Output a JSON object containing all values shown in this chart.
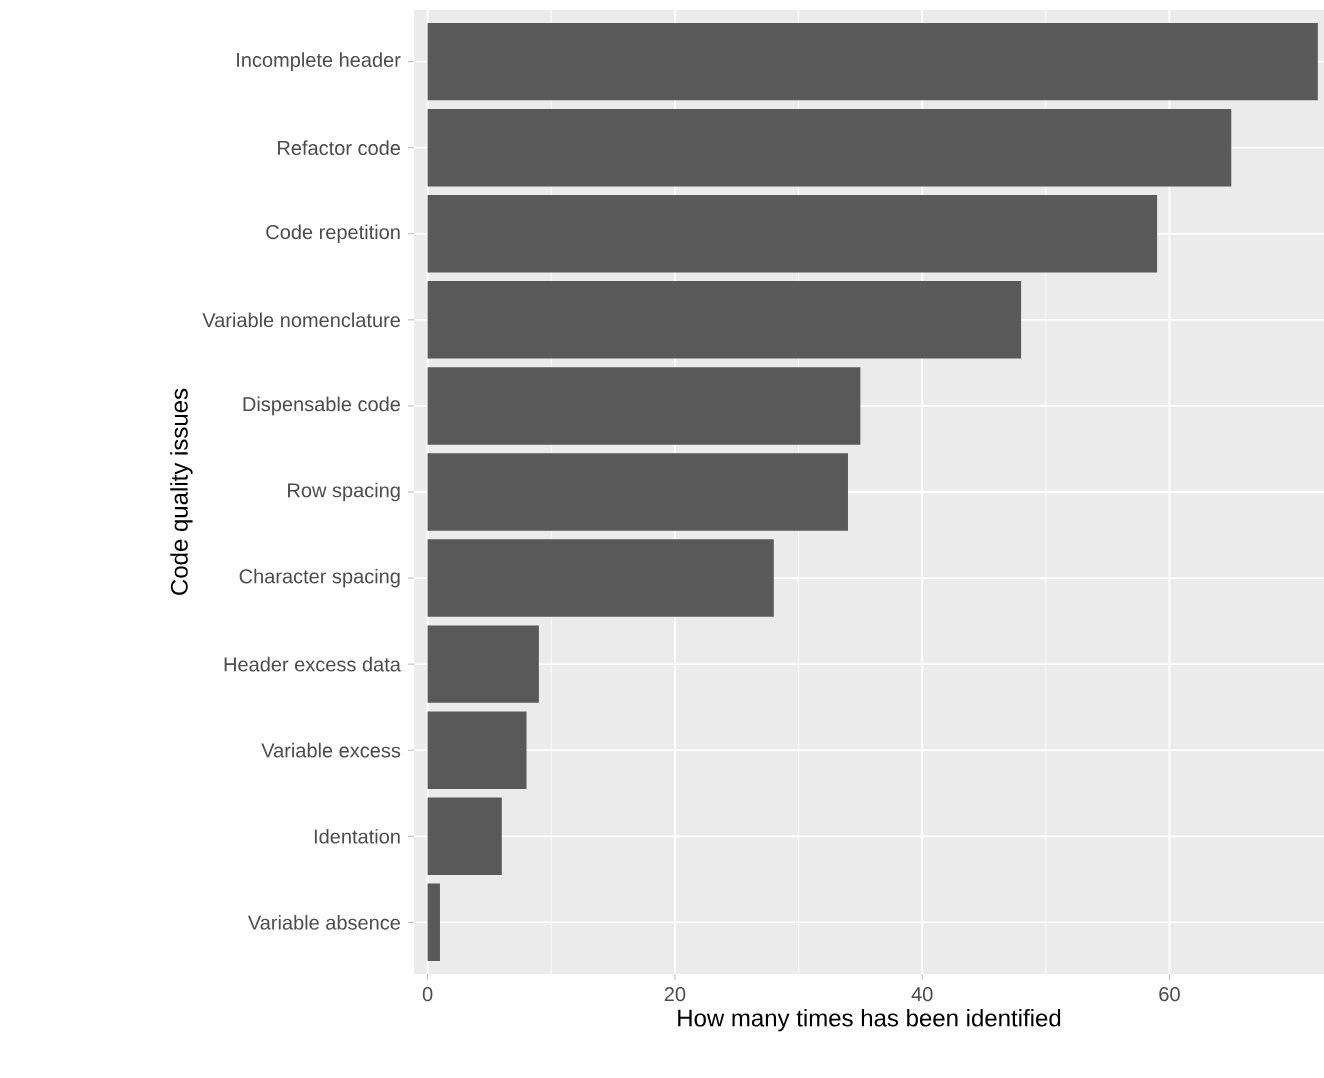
{
  "chart_data": {
    "type": "bar",
    "orientation": "horizontal",
    "xlabel": "How many times has been identified",
    "ylabel": "Code quality issues",
    "categories": [
      "Incomplete header",
      "Refactor code",
      "Code repetition",
      "Variable nomenclature",
      "Dispensable code",
      "Row spacing",
      "Character spacing",
      "Header excess data",
      "Variable excess",
      "Identation",
      "Variable absence"
    ],
    "values": [
      72,
      65,
      59,
      48,
      35,
      34,
      28,
      9,
      8,
      6,
      1
    ],
    "color": "#595959",
    "xlim": [
      -1.1,
      72.5
    ],
    "xticks": [
      0,
      20,
      40,
      60
    ],
    "grid": true
  }
}
